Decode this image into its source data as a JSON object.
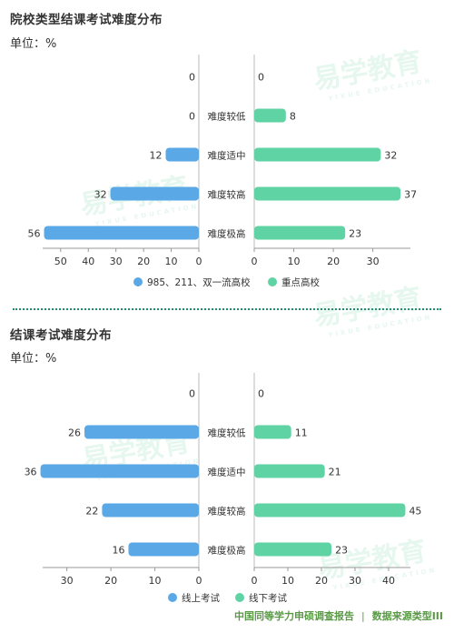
{
  "charts": [
    {
      "title": "院校类型结课考试难度分布",
      "unit": "单位：%"
    },
    {
      "title": "结课考试难度分布",
      "unit": "单位：%"
    }
  ],
  "chart_data": [
    {
      "type": "bar",
      "title": "院校类型结课考试难度分布",
      "categories": [
        "",
        "难度较低",
        "难度适中",
        "难度较高",
        "难度极高"
      ],
      "series": [
        {
          "name": "985、211、双一流高校",
          "values": [
            0,
            0,
            12,
            32,
            56
          ],
          "color": "#5aa9e6",
          "side": "left"
        },
        {
          "name": "重点高校",
          "values": [
            0,
            8,
            32,
            37,
            23
          ],
          "color": "#5fd3a3",
          "side": "right"
        }
      ],
      "left_ticks": [
        50,
        40,
        30,
        20,
        10,
        0
      ],
      "right_ticks": [
        0,
        10,
        20,
        30
      ],
      "left_max": 56.5,
      "right_max": 39.5,
      "legend_position": "bottom"
    },
    {
      "type": "bar",
      "title": "结课考试难度分布",
      "categories": [
        "",
        "难度较低",
        "难度适中",
        "难度较高",
        "难度极高"
      ],
      "series": [
        {
          "name": "线上考试",
          "values": [
            0,
            26,
            36,
            22,
            16
          ],
          "color": "#5aa9e6",
          "side": "left"
        },
        {
          "name": "线下考试",
          "values": [
            0,
            11,
            21,
            45,
            23
          ],
          "color": "#5fd3a3",
          "side": "right"
        }
      ],
      "left_ticks": [
        30,
        20,
        10,
        0
      ],
      "right_ticks": [
        0,
        10,
        20,
        30,
        40
      ],
      "left_max": 35.5,
      "right_max": 46.5,
      "legend_position": "bottom"
    }
  ],
  "footer": {
    "source_left": "中国同等学力申硕调查报告",
    "separator": "|",
    "source_right": "数据来源类型III"
  },
  "watermark": {
    "text": "易学教育",
    "sub": "YIXUE EDUCATION"
  }
}
